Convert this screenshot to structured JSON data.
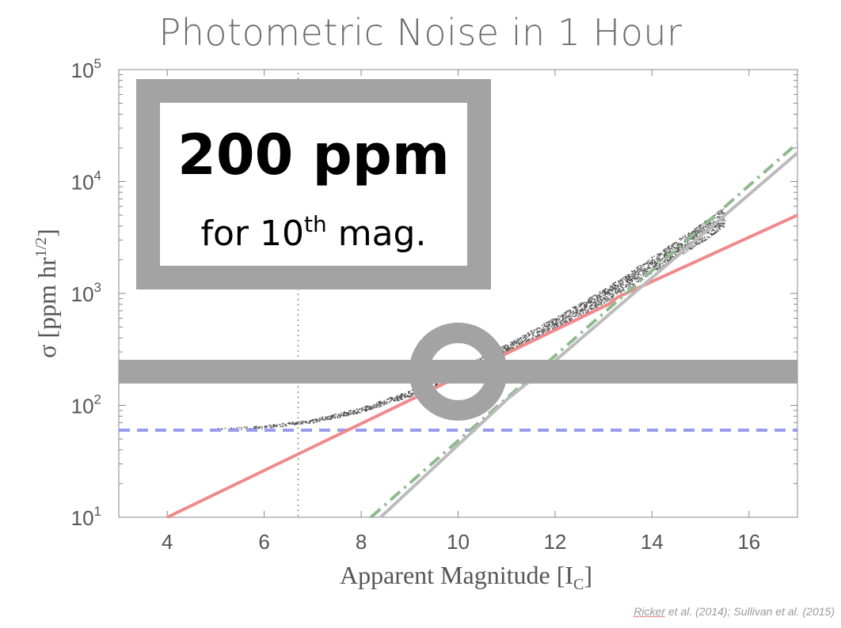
{
  "title": "Photometric Noise in 1 Hour",
  "credit": {
    "first_author": "Ricker",
    "rest": " et al. (2014); Sullivan et al. (2015)"
  },
  "callout": {
    "value": "200 ppm",
    "line2_prefix": "for 10",
    "line2_sup": "th",
    "line2_suffix": " mag."
  },
  "chart_data": {
    "type": "line",
    "xlabel": "Apparent Magnitude [I",
    "xlabel_sub": "C",
    "xlabel_close": "]",
    "ylabel": "σ [ppm hr",
    "ylabel_sup": "1/2",
    "ylabel_close": "]",
    "xlim": [
      3,
      17
    ],
    "ylim": [
      10,
      100000
    ],
    "y_scale": "log",
    "x_ticks": [
      4,
      6,
      8,
      10,
      12,
      14,
      16
    ],
    "y_tick_labels": [
      {
        "base": "10",
        "exp": "1",
        "value": 10
      },
      {
        "base": "10",
        "exp": "2",
        "value": 100
      },
      {
        "base": "10",
        "exp": "3",
        "value": 1000
      },
      {
        "base": "10",
        "exp": "4",
        "value": 10000
      },
      {
        "base": "10",
        "exp": "5",
        "value": 100000
      }
    ],
    "reference_vline_x": 6.7,
    "highlight": {
      "x": 10,
      "y": 200
    },
    "series": [
      {
        "color": "#9999ee",
        "style": "dashed",
        "x": [
          3,
          17
        ],
        "y": [
          60,
          60
        ]
      },
      {
        "color": "#f08a8a",
        "style": "solid",
        "x": [
          4,
          13.1,
          13.3,
          17
        ],
        "y": [
          10,
          800,
          930,
          5000
        ]
      },
      {
        "color": "#8fba8f",
        "style": "dashdot",
        "x": [
          8.2,
          17
        ],
        "y": [
          10,
          22000
        ]
      },
      {
        "color": "#bbbbbb",
        "style": "solid",
        "x": [
          8.4,
          11.0,
          12.0,
          17
        ],
        "y": [
          10,
          112,
          250,
          18000
        ]
      }
    ],
    "scatter_envelope": {
      "x": [
        5.0,
        6.0,
        7.0,
        8.0,
        9.0,
        10.0,
        11.0,
        12.0,
        13.0,
        14.0,
        15.0,
        15.5
      ],
      "y": [
        61,
        64,
        72,
        90,
        125,
        190,
        310,
        520,
        900,
        1700,
        3200,
        4500
      ]
    }
  }
}
